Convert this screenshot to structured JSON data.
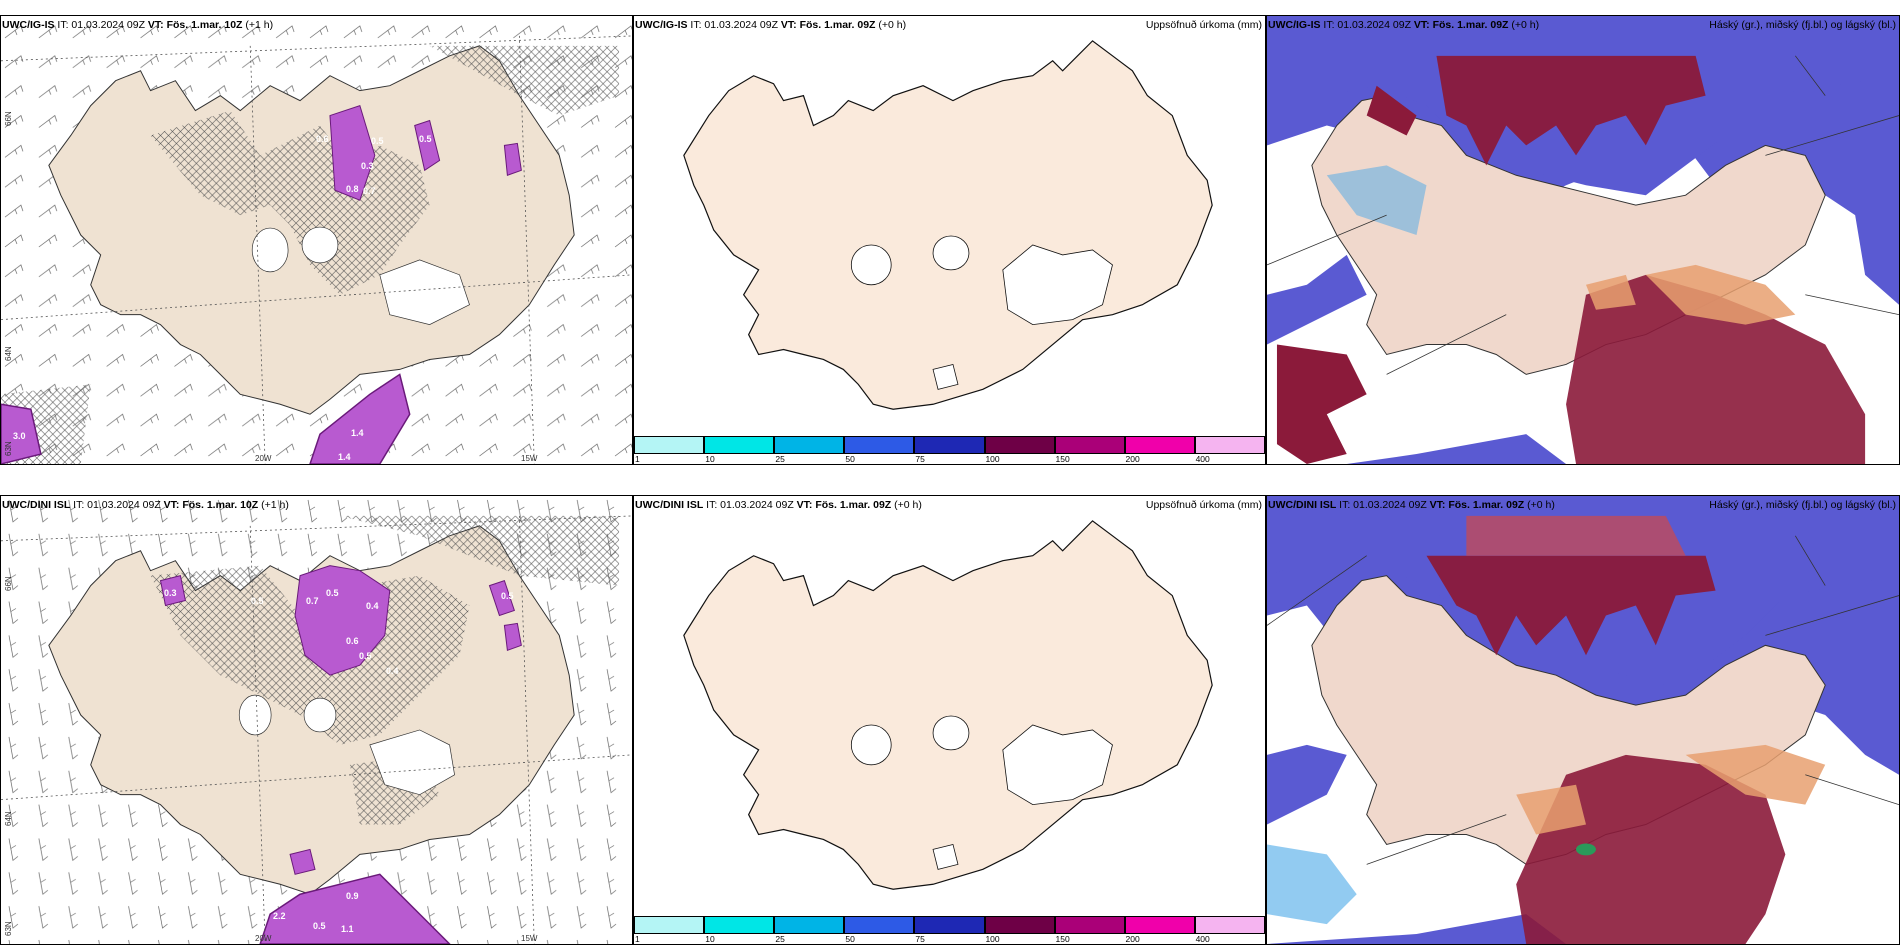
{
  "rows": [
    {
      "wind_panel": {
        "model": "UWC/IG-IS",
        "it": "IT: 01.03.2024 09Z",
        "vt_label": "VT:",
        "vt": "Fös. 1.mar. 10Z",
        "lead": "(+1 h)",
        "lon_labels": [
          "20W",
          "15W"
        ],
        "lat_labels": [
          "66N",
          "64N",
          "63N"
        ],
        "precip_values": [
          "0.5",
          "0.6",
          "0.5",
          "0.3",
          "0.8",
          "0.7",
          "1.4",
          "1.0",
          "1.4",
          "3.0"
        ]
      },
      "precip_panel": {
        "model": "UWC/IG-IS",
        "it": "IT: 01.03.2024 09Z",
        "vt_label": "VT:",
        "vt": "Fös. 1.mar. 09Z",
        "lead": "(+0 h)",
        "right_title": "Uppsöfnuð úrkoma (mm)",
        "colorbar": {
          "ticks": [
            "1",
            "10",
            "25",
            "50",
            "75",
            "100",
            "150",
            "200",
            "400"
          ],
          "colors": [
            "#b4f5f5",
            "#00e6e6",
            "#00b4e6",
            "#2d5ae6",
            "#1e28b4",
            "#6e0046",
            "#aa0078",
            "#f000aa",
            "#f5b4f0"
          ]
        }
      },
      "cloud_panel": {
        "model": "UWC/IG-IS",
        "it": "IT: 01.03.2024 09Z",
        "vt_label": "VT:",
        "vt": "Fös. 1.mar. 09Z",
        "lead": "(+0 h)",
        "right_title": "Háský (gr.), miðský (fj.bl.) og lágský (bl.)"
      }
    },
    {
      "wind_panel": {
        "model": "UWC/DINI ISL",
        "it": "IT: 01.03.2024 09Z",
        "vt_label": "VT:",
        "vt": "Fös. 1.mar. 10Z",
        "lead": "(+1 h)",
        "lon_labels": [
          "20W",
          "15W"
        ],
        "lat_labels": [
          "66N",
          "64N",
          "63N"
        ],
        "precip_values": [
          "0.3",
          "0.5",
          "0.7",
          "0.5",
          "0.4",
          "0.6",
          "0.5",
          "0.4",
          "0.5",
          "2.2",
          "0.5",
          "1.1",
          "0.9"
        ]
      },
      "precip_panel": {
        "model": "UWC/DINI ISL",
        "it": "IT: 01.03.2024 09Z",
        "vt_label": "VT:",
        "vt": "Fös. 1.mar. 09Z",
        "lead": "(+0 h)",
        "right_title": "Uppsöfnuð úrkoma (mm)",
        "colorbar": {
          "ticks": [
            "1",
            "10",
            "25",
            "50",
            "75",
            "100",
            "150",
            "200",
            "400"
          ],
          "colors": [
            "#b4f5f5",
            "#00e6e6",
            "#00b4e6",
            "#2d5ae6",
            "#1e28b4",
            "#6e0046",
            "#aa0078",
            "#f000aa",
            "#f5b4f0"
          ]
        }
      },
      "cloud_panel": {
        "model": "UWC/DINI ISL",
        "it": "IT: 01.03.2024 09Z",
        "vt_label": "VT:",
        "vt": "Fös. 1.mar. 09Z",
        "lead": "(+0 h)",
        "right_title": "Háský (gr.), miðský (fj.bl.) og lágský (bl.)"
      }
    }
  ],
  "colors": {
    "land": "#faeadc",
    "wind_land": "#efe2d2",
    "high_cloud": "#8b1a3a",
    "mid_cloud": "#5a5ad2",
    "low_cloud": "#4aa8e8",
    "precip": "#b85ad0"
  }
}
